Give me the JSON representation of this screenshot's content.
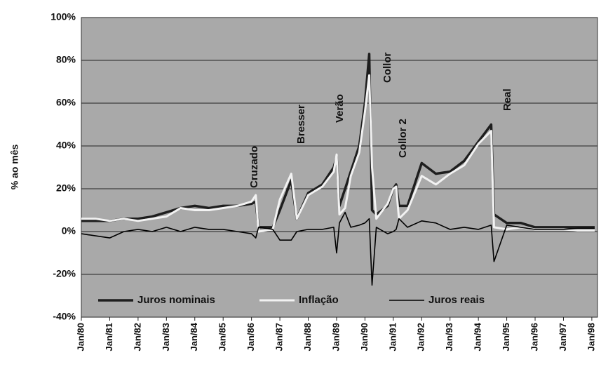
{
  "chart_data": {
    "type": "line",
    "y_label": "% ao mês",
    "x": [
      1980.0,
      1980.5,
      1981.0,
      1981.5,
      1982.0,
      1982.5,
      1983.0,
      1983.5,
      1984.0,
      1984.5,
      1985.0,
      1985.5,
      1986.0,
      1986.15,
      1986.25,
      1986.75,
      1987.0,
      1987.4,
      1987.6,
      1988.0,
      1988.5,
      1988.9,
      1989.0,
      1989.1,
      1989.3,
      1989.5,
      1989.8,
      1990.0,
      1990.15,
      1990.25,
      1990.4,
      1990.8,
      1991.0,
      1991.1,
      1991.2,
      1991.5,
      1992.0,
      1992.5,
      1993.0,
      1993.5,
      1994.0,
      1994.45,
      1994.55,
      1995.0,
      1995.5,
      1996.0,
      1996.5,
      1997.0,
      1997.5,
      1998.0,
      1998.1
    ],
    "series": [
      {
        "name": "Juros nominais",
        "color": "#1e1e1e",
        "width": 3.5,
        "values": [
          5,
          5,
          5,
          6,
          6,
          7,
          9,
          11,
          12,
          11,
          12,
          12,
          13,
          14,
          2,
          2,
          10,
          24,
          6,
          18,
          22,
          30,
          35,
          12,
          20,
          28,
          40,
          60,
          83,
          10,
          8,
          12,
          20,
          22,
          12,
          12,
          32,
          27,
          28,
          33,
          42,
          50,
          8,
          4,
          4,
          2,
          2,
          2,
          2,
          2,
          2
        ]
      },
      {
        "name": "Inflação",
        "color": "#f2f2f2",
        "width": 3,
        "values": [
          6,
          6,
          5,
          6,
          5,
          6,
          7,
          11,
          10,
          10,
          11,
          12,
          14,
          17,
          0,
          1,
          15,
          27,
          6,
          17,
          21,
          28,
          36,
          8,
          11,
          26,
          37,
          56,
          73,
          30,
          6,
          13,
          20,
          21,
          6,
          10,
          26,
          22,
          27,
          31,
          41,
          47,
          2,
          1,
          2,
          1,
          1,
          1,
          0.5,
          0.5,
          0.5
        ]
      },
      {
        "name": "Juros reais",
        "color": "#000000",
        "width": 1.6,
        "values": [
          -1,
          -2,
          -3,
          0,
          1,
          0,
          2,
          0,
          2,
          1,
          1,
          0,
          -1,
          -3,
          2,
          1,
          -4,
          -4,
          0,
          1,
          1,
          2,
          -10,
          4,
          9,
          2,
          3,
          4,
          6,
          -25,
          2,
          -1,
          0,
          1,
          6,
          2,
          5,
          4,
          1,
          2,
          1,
          3,
          -14,
          3,
          2,
          1,
          1,
          1,
          1.5,
          1.5,
          1.5
        ]
      }
    ],
    "annotations": [
      "Cruzado",
      "Bresser",
      "Verão",
      "Collor",
      "Collor 2",
      "Real"
    ],
    "xlim": [
      1980,
      1998.2
    ],
    "xticks": [
      {
        "value": 1980,
        "label": "Jan/80"
      },
      {
        "value": 1981,
        "label": "Jan/81"
      },
      {
        "value": 1982,
        "label": "Jan/82"
      },
      {
        "value": 1983,
        "label": "Jan/83"
      },
      {
        "value": 1984,
        "label": "Jan/84"
      },
      {
        "value": 1985,
        "label": "Jan/85"
      },
      {
        "value": 1986,
        "label": "Jan/86"
      },
      {
        "value": 1987,
        "label": "Jan/87"
      },
      {
        "value": 1988,
        "label": "Jan/88"
      },
      {
        "value": 1989,
        "label": "Jan/89"
      },
      {
        "value": 1990,
        "label": "Jan/90"
      },
      {
        "value": 1991,
        "label": "Jan/91"
      },
      {
        "value": 1992,
        "label": "Jan/92"
      },
      {
        "value": 1993,
        "label": "Jan/93"
      },
      {
        "value": 1994,
        "label": "Jan/94"
      },
      {
        "value": 1995,
        "label": "Jan/95"
      },
      {
        "value": 1996,
        "label": "Jan/96"
      },
      {
        "value": 1997,
        "label": "Jan/97"
      },
      {
        "value": 1998,
        "label": "Jan/98"
      }
    ],
    "ylim": [
      -40,
      100
    ],
    "yticks": [
      {
        "value": -40,
        "label": "-40%"
      },
      {
        "value": -20,
        "label": "-20%"
      },
      {
        "value": 0,
        "label": "0%"
      },
      {
        "value": 20,
        "label": "20%"
      },
      {
        "value": 40,
        "label": "40%"
      },
      {
        "value": 60,
        "label": "60%"
      },
      {
        "value": 80,
        "label": "80%"
      },
      {
        "value": 100,
        "label": "100%"
      }
    ],
    "grid": true,
    "legend": "bottom"
  }
}
